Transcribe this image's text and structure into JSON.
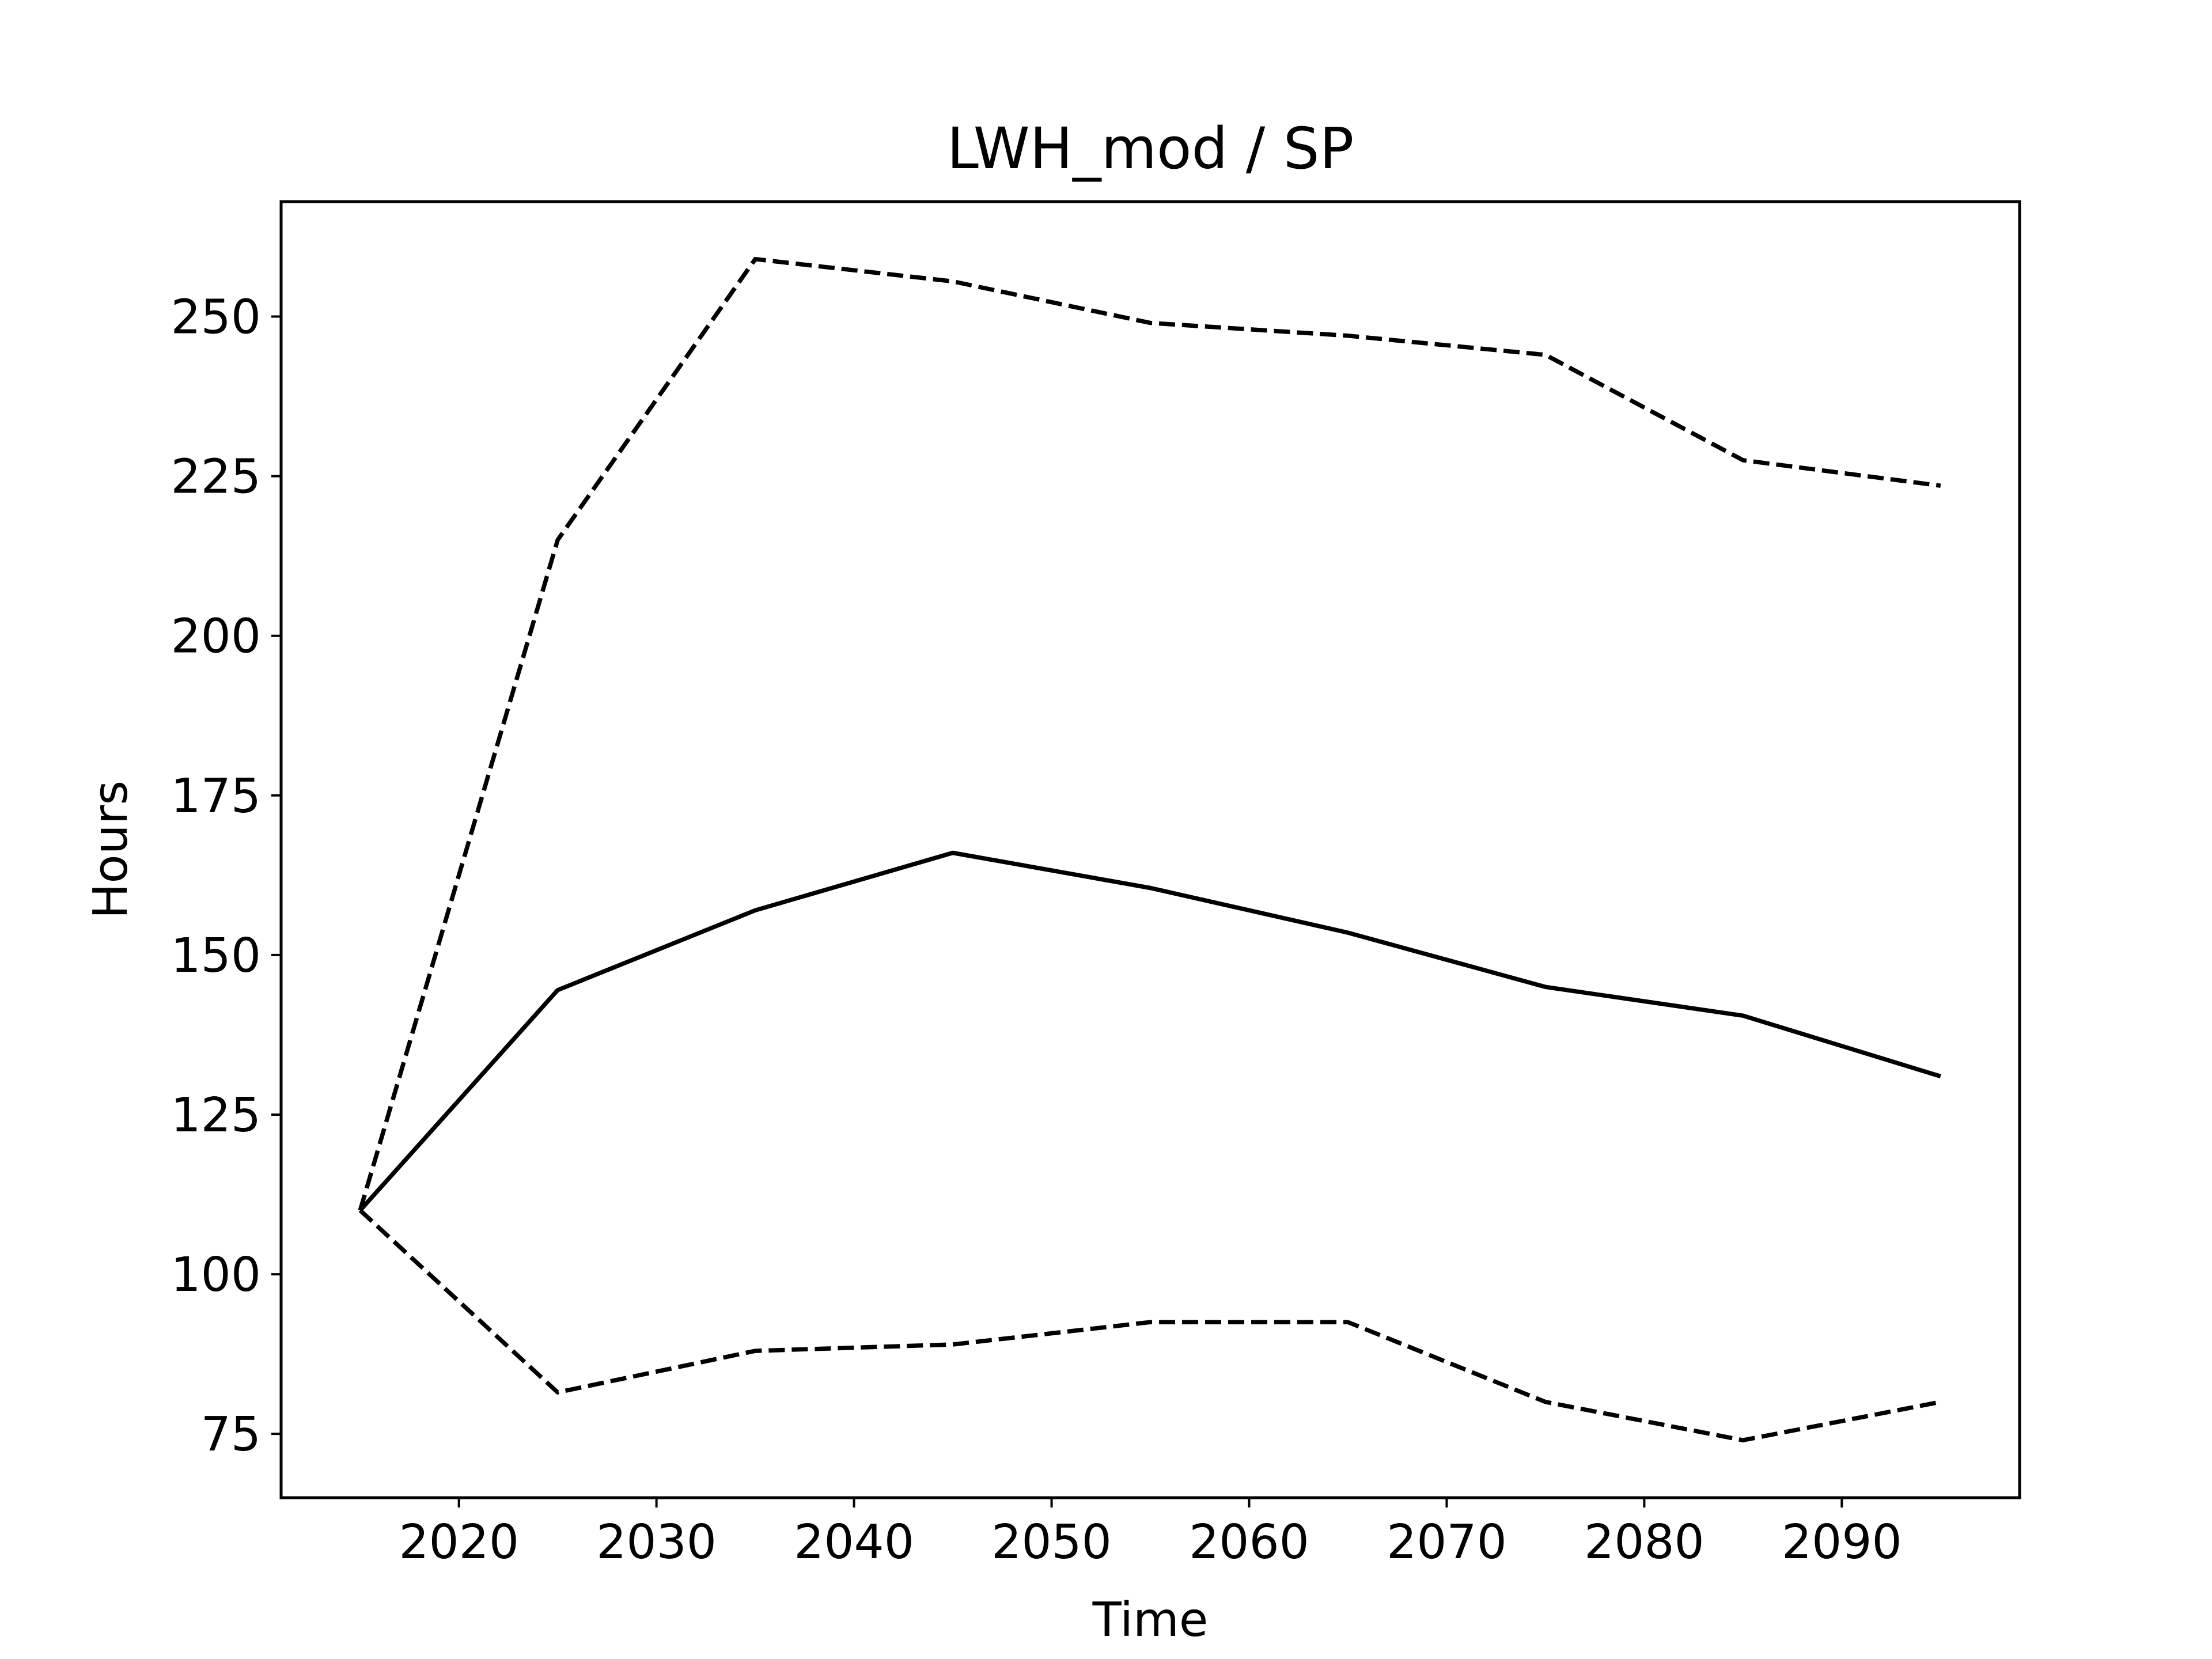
{
  "chart_data": {
    "type": "line",
    "title": "LWH_mod / SP",
    "xlabel": "Time",
    "ylabel": "Hours",
    "x": [
      2015,
      2025,
      2035,
      2045,
      2055,
      2065,
      2075,
      2085,
      2095
    ],
    "xlim": [
      2011,
      2099
    ],
    "ylim": [
      65,
      268
    ],
    "xticks": [
      2020,
      2030,
      2040,
      2050,
      2060,
      2070,
      2080,
      2090
    ],
    "yticks": [
      75,
      100,
      125,
      150,
      175,
      200,
      225,
      250
    ],
    "grid": false,
    "legend": "none",
    "series": [
      {
        "style": "solid",
        "color": "#000000",
        "values": [
          110,
          144.5,
          157,
          166,
          160.5,
          153.5,
          145,
          140.5,
          131
        ]
      },
      {
        "style": "dashed",
        "color": "#000000",
        "values": [
          110,
          215,
          259,
          255.5,
          249,
          247,
          244,
          227.5,
          223.5
        ]
      },
      {
        "style": "dashed",
        "color": "#000000",
        "values": [
          110,
          81.5,
          88,
          89,
          92.5,
          92.5,
          80,
          74,
          80
        ]
      }
    ]
  }
}
